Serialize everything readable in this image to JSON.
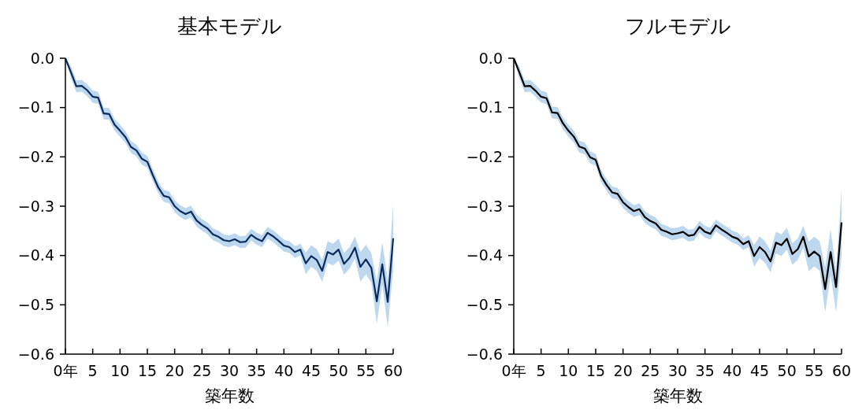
{
  "chart_data": [
    {
      "type": "line",
      "title": "基本モデル",
      "xlabel": "築年数",
      "x": [
        0,
        1,
        2,
        3,
        4,
        5,
        6,
        7,
        8,
        9,
        10,
        11,
        12,
        13,
        14,
        15,
        16,
        17,
        18,
        19,
        20,
        21,
        22,
        23,
        24,
        25,
        26,
        27,
        28,
        29,
        30,
        31,
        32,
        33,
        34,
        35,
        36,
        37,
        38,
        39,
        40,
        41,
        42,
        43,
        44,
        45,
        46,
        47,
        48,
        49,
        50,
        51,
        52,
        53,
        54,
        55,
        56,
        57,
        58,
        59,
        60
      ],
      "series": [
        {
          "color": "#0b2a5c",
          "values": [
            0,
            -0.028,
            -0.057,
            -0.056,
            -0.065,
            -0.078,
            -0.08,
            -0.112,
            -0.113,
            -0.135,
            -0.147,
            -0.16,
            -0.18,
            -0.187,
            -0.204,
            -0.21,
            -0.237,
            -0.262,
            -0.279,
            -0.282,
            -0.3,
            -0.31,
            -0.316,
            -0.311,
            -0.329,
            -0.338,
            -0.345,
            -0.357,
            -0.362,
            -0.369,
            -0.371,
            -0.367,
            -0.373,
            -0.372,
            -0.358,
            -0.366,
            -0.371,
            -0.354,
            -0.361,
            -0.37,
            -0.38,
            -0.383,
            -0.393,
            -0.388,
            -0.416,
            -0.401,
            -0.409,
            -0.431,
            -0.393,
            -0.398,
            -0.388,
            -0.417,
            -0.405,
            -0.384,
            -0.423,
            -0.408,
            -0.425,
            -0.493,
            -0.418,
            -0.494,
            -0.365
          ],
          "upper": [
            0,
            -0.016,
            -0.045,
            -0.044,
            -0.053,
            -0.066,
            -0.068,
            -0.1,
            -0.101,
            -0.123,
            -0.135,
            -0.148,
            -0.168,
            -0.175,
            -0.192,
            -0.198,
            -0.225,
            -0.25,
            -0.267,
            -0.27,
            -0.288,
            -0.298,
            -0.304,
            -0.299,
            -0.317,
            -0.326,
            -0.333,
            -0.345,
            -0.35,
            -0.357,
            -0.359,
            -0.355,
            -0.361,
            -0.36,
            -0.346,
            -0.354,
            -0.359,
            -0.342,
            -0.349,
            -0.358,
            -0.368,
            -0.371,
            -0.381,
            -0.376,
            -0.394,
            -0.379,
            -0.387,
            -0.409,
            -0.371,
            -0.376,
            -0.366,
            -0.395,
            -0.383,
            -0.362,
            -0.393,
            -0.378,
            -0.395,
            -0.451,
            -0.373,
            -0.45,
            -0.297
          ],
          "lower": [
            0,
            -0.04,
            -0.069,
            -0.068,
            -0.077,
            -0.09,
            -0.092,
            -0.124,
            -0.125,
            -0.147,
            -0.159,
            -0.172,
            -0.192,
            -0.199,
            -0.216,
            -0.222,
            -0.249,
            -0.274,
            -0.291,
            -0.294,
            -0.312,
            -0.322,
            -0.328,
            -0.323,
            -0.341,
            -0.35,
            -0.357,
            -0.369,
            -0.374,
            -0.381,
            -0.383,
            -0.379,
            -0.385,
            -0.384,
            -0.37,
            -0.378,
            -0.383,
            -0.366,
            -0.373,
            -0.382,
            -0.392,
            -0.395,
            -0.405,
            -0.4,
            -0.438,
            -0.423,
            -0.431,
            -0.453,
            -0.415,
            -0.42,
            -0.41,
            -0.439,
            -0.427,
            -0.406,
            -0.453,
            -0.438,
            -0.455,
            -0.539,
            -0.46,
            -0.545,
            -0.43
          ]
        }
      ],
      "xlim": [
        0,
        60
      ],
      "xticks": [
        {
          "value": 0,
          "label": "0年"
        },
        5,
        10,
        15,
        20,
        25,
        30,
        35,
        40,
        45,
        50,
        55,
        60
      ],
      "ylim": [
        -0.6,
        0
      ],
      "yticks": [
        {
          "value": 0,
          "label": "0.0"
        },
        -0.1,
        -0.2,
        -0.3,
        -0.4,
        -0.5,
        -0.6
      ]
    },
    {
      "type": "line",
      "title": "フルモデル",
      "xlabel": "築年数",
      "x": [
        0,
        1,
        2,
        3,
        4,
        5,
        6,
        7,
        8,
        9,
        10,
        11,
        12,
        13,
        14,
        15,
        16,
        17,
        18,
        19,
        20,
        21,
        22,
        23,
        24,
        25,
        26,
        27,
        28,
        29,
        30,
        31,
        32,
        33,
        34,
        35,
        36,
        37,
        38,
        39,
        40,
        41,
        42,
        43,
        44,
        45,
        46,
        47,
        48,
        49,
        50,
        51,
        52,
        53,
        54,
        55,
        56,
        57,
        58,
        59,
        60
      ],
      "series": [
        {
          "color": "#000000",
          "values": [
            0,
            -0.028,
            -0.057,
            -0.056,
            -0.066,
            -0.078,
            -0.081,
            -0.11,
            -0.111,
            -0.132,
            -0.147,
            -0.159,
            -0.179,
            -0.183,
            -0.201,
            -0.206,
            -0.239,
            -0.257,
            -0.272,
            -0.275,
            -0.292,
            -0.302,
            -0.31,
            -0.306,
            -0.322,
            -0.33,
            -0.335,
            -0.348,
            -0.352,
            -0.357,
            -0.355,
            -0.352,
            -0.36,
            -0.358,
            -0.342,
            -0.352,
            -0.356,
            -0.339,
            -0.347,
            -0.354,
            -0.362,
            -0.366,
            -0.377,
            -0.371,
            -0.401,
            -0.383,
            -0.393,
            -0.412,
            -0.374,
            -0.379,
            -0.366,
            -0.397,
            -0.387,
            -0.362,
            -0.402,
            -0.392,
            -0.401,
            -0.468,
            -0.393,
            -0.464,
            -0.333
          ],
          "upper": [
            0,
            -0.016,
            -0.045,
            -0.044,
            -0.054,
            -0.066,
            -0.069,
            -0.098,
            -0.099,
            -0.12,
            -0.135,
            -0.147,
            -0.167,
            -0.171,
            -0.189,
            -0.194,
            -0.227,
            -0.245,
            -0.26,
            -0.263,
            -0.28,
            -0.29,
            -0.298,
            -0.294,
            -0.31,
            -0.318,
            -0.323,
            -0.336,
            -0.34,
            -0.345,
            -0.343,
            -0.34,
            -0.348,
            -0.346,
            -0.33,
            -0.34,
            -0.344,
            -0.327,
            -0.335,
            -0.342,
            -0.35,
            -0.354,
            -0.365,
            -0.359,
            -0.379,
            -0.361,
            -0.371,
            -0.39,
            -0.352,
            -0.357,
            -0.344,
            -0.375,
            -0.365,
            -0.34,
            -0.372,
            -0.362,
            -0.371,
            -0.424,
            -0.347,
            -0.43,
            -0.265
          ],
          "lower": [
            0,
            -0.04,
            -0.069,
            -0.068,
            -0.078,
            -0.09,
            -0.093,
            -0.122,
            -0.123,
            -0.144,
            -0.159,
            -0.171,
            -0.191,
            -0.195,
            -0.213,
            -0.218,
            -0.251,
            -0.269,
            -0.284,
            -0.287,
            -0.304,
            -0.314,
            -0.322,
            -0.318,
            -0.334,
            -0.342,
            -0.347,
            -0.36,
            -0.364,
            -0.369,
            -0.367,
            -0.364,
            -0.372,
            -0.37,
            -0.354,
            -0.364,
            -0.368,
            -0.351,
            -0.359,
            -0.366,
            -0.374,
            -0.378,
            -0.389,
            -0.383,
            -0.423,
            -0.405,
            -0.415,
            -0.434,
            -0.396,
            -0.401,
            -0.388,
            -0.419,
            -0.409,
            -0.384,
            -0.432,
            -0.422,
            -0.431,
            -0.515,
            -0.44,
            -0.515,
            -0.4
          ]
        }
      ],
      "xlim": [
        0,
        60
      ],
      "xticks": [
        {
          "value": 0,
          "label": "0年"
        },
        5,
        10,
        15,
        20,
        25,
        30,
        35,
        40,
        45,
        50,
        55,
        60
      ],
      "ylim": [
        -0.6,
        0
      ],
      "yticks": [
        {
          "value": 0,
          "label": "0.0"
        },
        -0.1,
        -0.2,
        -0.3,
        -0.4,
        -0.5,
        -0.6
      ]
    }
  ]
}
